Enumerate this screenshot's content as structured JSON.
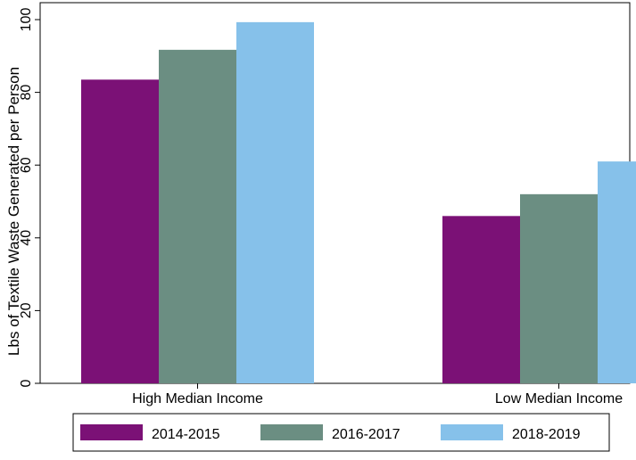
{
  "chart_data": {
    "type": "bar",
    "categories": [
      "High Median Income",
      "Low Median Income"
    ],
    "series": [
      {
        "name": "2014-2015",
        "values": [
          83.5,
          46.0
        ],
        "color": "#7b1176"
      },
      {
        "name": "2016-2017",
        "values": [
          91.7,
          52.0
        ],
        "color": "#6b8e82"
      },
      {
        "name": "2018-2019",
        "values": [
          99.3,
          61.0
        ],
        "color": "#86c1ea"
      }
    ],
    "title": "",
    "xlabel": "",
    "ylabel": "Lbs of Textile Waste Generated per Person",
    "ylim": [
      0,
      100
    ],
    "yticks": [
      0,
      20,
      40,
      60,
      80,
      100
    ],
    "grid": false,
    "legend_position": "bottom"
  }
}
